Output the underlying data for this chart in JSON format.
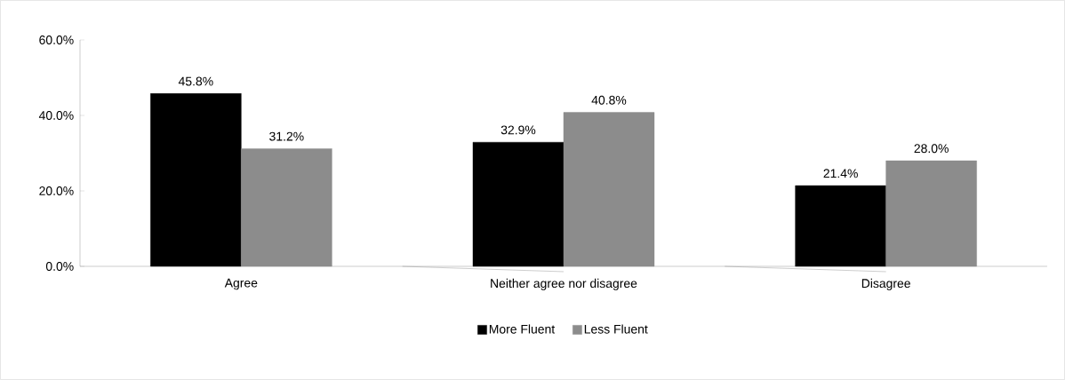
{
  "chart_data": {
    "type": "bar",
    "categories": [
      "Agree",
      "Neither agree nor disagree",
      "Disagree"
    ],
    "series": [
      {
        "name": "More Fluent",
        "color": "#000000",
        "values": [
          45.8,
          32.9,
          21.4
        ],
        "value_labels": [
          "45.8%",
          "32.9%",
          "21.4%"
        ]
      },
      {
        "name": "Less Fluent",
        "color": "#8c8c8c",
        "values": [
          31.2,
          40.8,
          28.0
        ],
        "value_labels": [
          "31.2%",
          "40.8%",
          "28.0%"
        ]
      }
    ],
    "ylim": [
      0,
      60
    ],
    "yticks": [
      {
        "value": 0,
        "label": "0.0%"
      },
      {
        "value": 20,
        "label": "20.0%"
      },
      {
        "value": 40,
        "label": "40.0%"
      },
      {
        "value": 60,
        "label": "60.0%"
      }
    ],
    "grid": false,
    "legend": "bottom"
  }
}
